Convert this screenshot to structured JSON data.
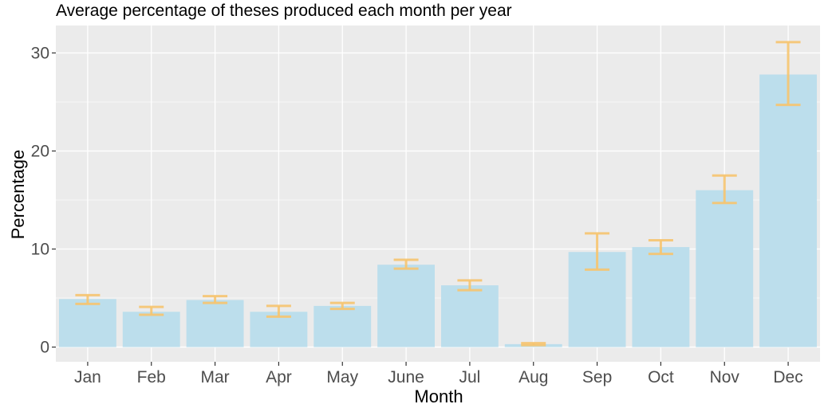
{
  "chart_data": {
    "type": "bar",
    "title": "Average percentage of theses produced each month per year",
    "xlabel": "Month",
    "ylabel": "Percentage",
    "categories": [
      "Jan",
      "Feb",
      "Mar",
      "Apr",
      "May",
      "June",
      "Jul",
      "Aug",
      "Sep",
      "Oct",
      "Nov",
      "Dec"
    ],
    "values": [
      4.9,
      3.6,
      4.8,
      3.6,
      4.2,
      8.4,
      6.3,
      0.3,
      9.7,
      10.2,
      16.0,
      27.8
    ],
    "error_low": [
      4.4,
      3.3,
      4.5,
      3.1,
      3.9,
      8.0,
      5.8,
      0.2,
      7.9,
      9.5,
      14.7,
      24.7
    ],
    "error_high": [
      5.3,
      4.1,
      5.2,
      4.2,
      4.5,
      8.9,
      6.8,
      0.4,
      11.6,
      10.9,
      17.5,
      31.1
    ],
    "ylim": [
      -1.5,
      32.8
    ],
    "yticks": [
      0,
      10,
      20,
      30
    ],
    "grid": true,
    "colors": {
      "bar": "#bcdeec",
      "error_bar": "#f6c46f",
      "panel": "#ebebeb",
      "grid": "#ffffff"
    }
  }
}
